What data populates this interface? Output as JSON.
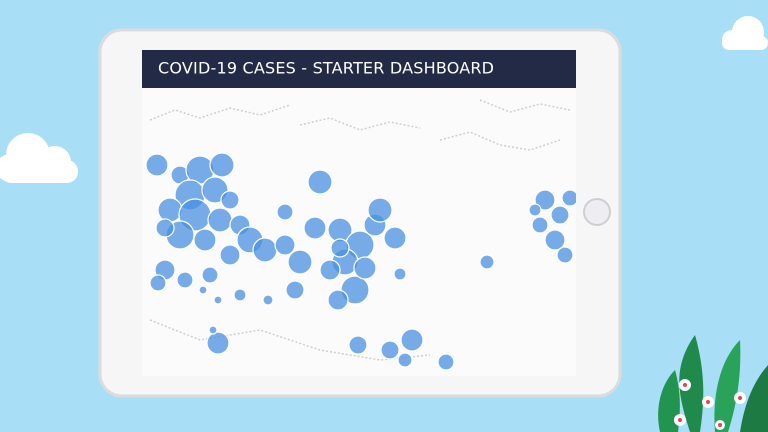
{
  "dashboard": {
    "title": "COVID-19 CASES - STARTER DASHBOARD"
  }
}
